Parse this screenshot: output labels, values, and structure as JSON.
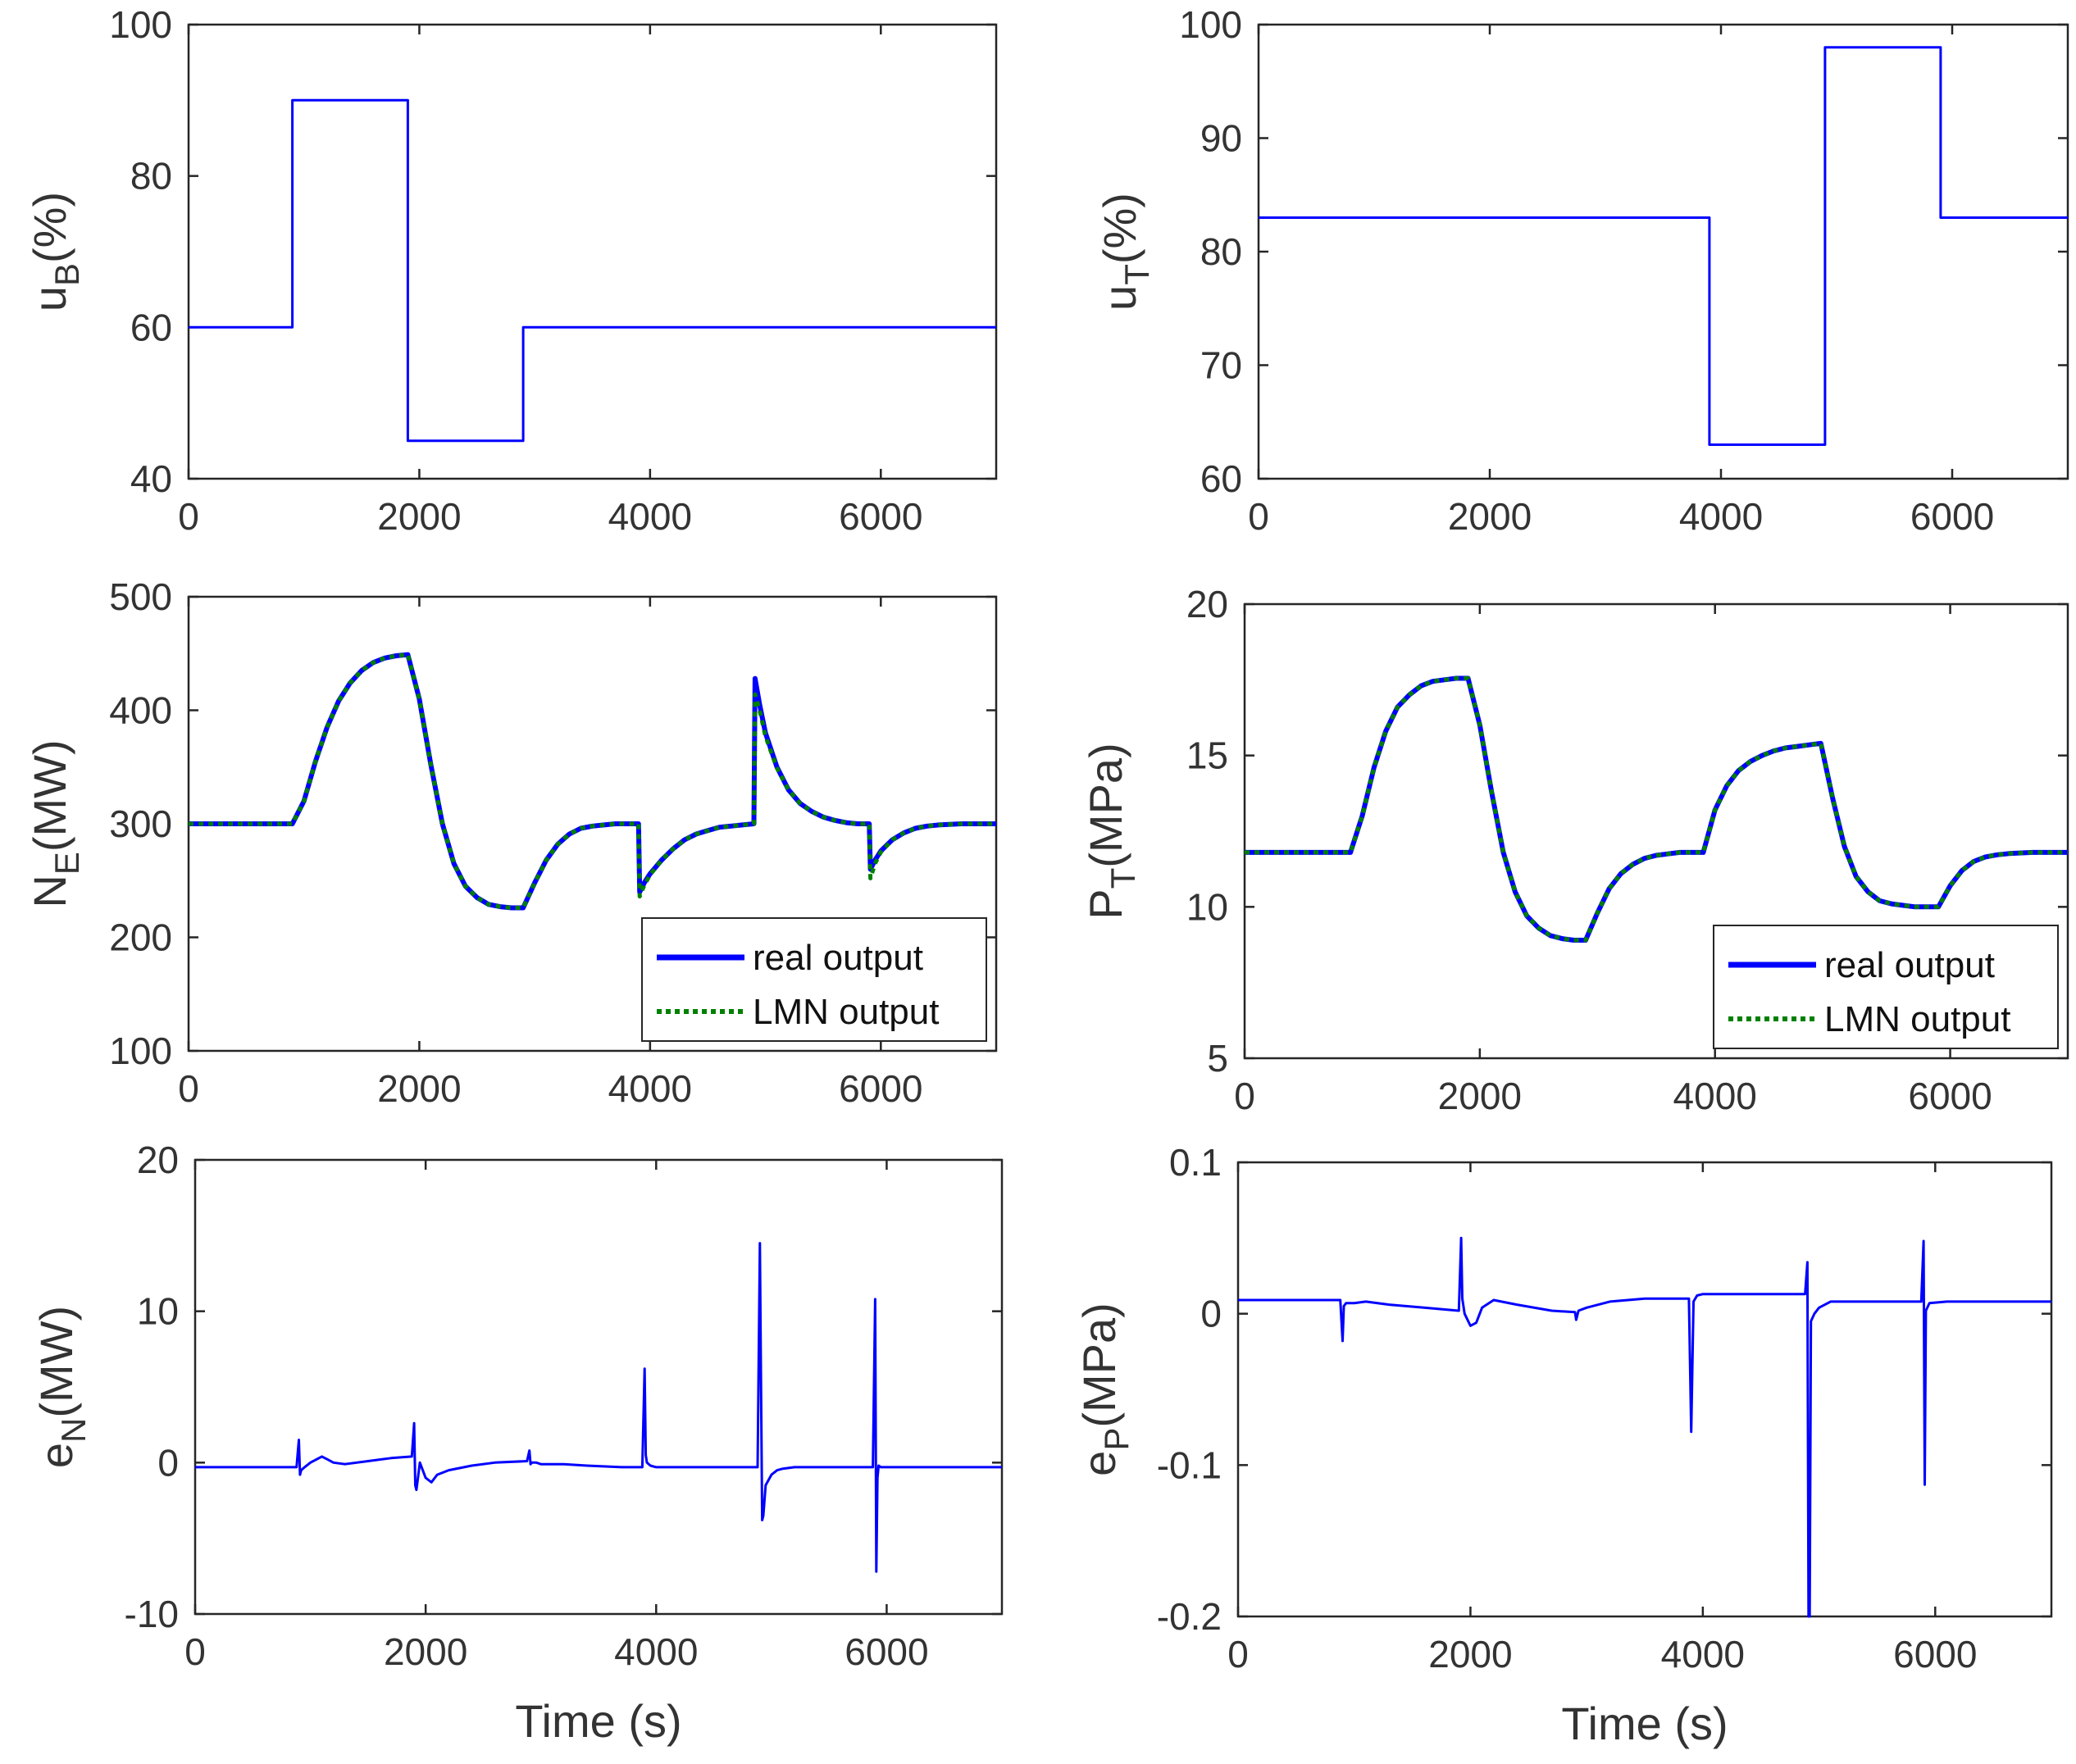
{
  "chart_data": [
    {
      "id": "uB",
      "type": "line",
      "ylabel_main": "u",
      "ylabel_sub": "B",
      "ylabel_tail": "(%)",
      "xlabel": "",
      "xlim": [
        0,
        7000
      ],
      "ylim": [
        40,
        100
      ],
      "xticks": [
        0,
        2000,
        4000,
        6000
      ],
      "yticks": [
        40,
        60,
        80,
        100
      ],
      "series": [
        {
          "name": "uB",
          "color": "#0000ff",
          "x": [
            0,
            900,
            900,
            1900,
            1900,
            2900,
            2900,
            7000
          ],
          "y": [
            60,
            60,
            90,
            90,
            45,
            45,
            60,
            60
          ]
        }
      ]
    },
    {
      "id": "uT",
      "type": "line",
      "ylabel_main": "u",
      "ylabel_sub": "T",
      "ylabel_tail": "(%)",
      "xlabel": "",
      "xlim": [
        0,
        7000
      ],
      "ylim": [
        60,
        100
      ],
      "xticks": [
        0,
        2000,
        4000,
        6000
      ],
      "yticks": [
        60,
        70,
        80,
        90,
        100
      ],
      "series": [
        {
          "name": "uT",
          "color": "#0000ff",
          "x": [
            0,
            3900,
            3900,
            4900,
            4900,
            5900,
            5900,
            7000
          ],
          "y": [
            83,
            83,
            63,
            63,
            98,
            98,
            83,
            83
          ]
        }
      ]
    },
    {
      "id": "NE",
      "type": "line",
      "ylabel_main": "N",
      "ylabel_sub": "E",
      "ylabel_tail": "(MW)",
      "xlabel": "",
      "xlim": [
        0,
        7000
      ],
      "ylim": [
        100,
        500
      ],
      "xticks": [
        0,
        2000,
        4000,
        6000
      ],
      "yticks": [
        100,
        200,
        300,
        400,
        500
      ],
      "legend": {
        "position": "bottom-right",
        "entries": [
          "real output",
          "LMN output"
        ]
      },
      "series": [
        {
          "name": "real output",
          "color": "#0000ff",
          "style": "solid",
          "x": [
            0,
            900,
            1000,
            1100,
            1200,
            1300,
            1400,
            1500,
            1600,
            1700,
            1800,
            1900,
            2000,
            2100,
            2200,
            2300,
            2400,
            2500,
            2600,
            2700,
            2800,
            2900,
            3000,
            3100,
            3200,
            3300,
            3400,
            3500,
            3600,
            3700,
            3800,
            3900,
            3910,
            3950,
            4000,
            4100,
            4200,
            4300,
            4400,
            4500,
            4600,
            4700,
            4800,
            4900,
            4910,
            4950,
            5000,
            5100,
            5200,
            5300,
            5400,
            5500,
            5600,
            5700,
            5800,
            5900,
            5910,
            5950,
            6000,
            6100,
            6200,
            6300,
            6400,
            6500,
            6700,
            7000
          ],
          "y": [
            300,
            300,
            320,
            355,
            385,
            408,
            424,
            435,
            442,
            446,
            448,
            449,
            410,
            352,
            300,
            265,
            245,
            235,
            229,
            227,
            226,
            226,
            248,
            268,
            282,
            291,
            296,
            298,
            299,
            300,
            300,
            300,
            240,
            248,
            256,
            268,
            278,
            286,
            291,
            294,
            297,
            298,
            299,
            300,
            428,
            405,
            380,
            350,
            330,
            318,
            311,
            306,
            303,
            301,
            300,
            300,
            260,
            268,
            276,
            286,
            292,
            296,
            298,
            299,
            300,
            300
          ]
        },
        {
          "name": "LMN output",
          "color": "#008000",
          "style": "dotted",
          "x": [
            0,
            900,
            1000,
            1100,
            1200,
            1300,
            1400,
            1500,
            1600,
            1700,
            1800,
            1900,
            2000,
            2100,
            2200,
            2300,
            2400,
            2500,
            2600,
            2700,
            2800,
            2900,
            3000,
            3100,
            3200,
            3300,
            3400,
            3500,
            3600,
            3700,
            3800,
            3900,
            3910,
            3950,
            4000,
            4100,
            4200,
            4300,
            4400,
            4500,
            4600,
            4700,
            4800,
            4900,
            4910,
            4950,
            5000,
            5100,
            5200,
            5300,
            5400,
            5500,
            5600,
            5700,
            5800,
            5900,
            5910,
            5950,
            6000,
            6100,
            6200,
            6300,
            6400,
            6500,
            6700,
            7000
          ],
          "y": [
            300,
            300,
            320,
            355,
            385,
            408,
            424,
            435,
            442,
            446,
            448,
            449,
            410,
            352,
            300,
            265,
            245,
            235,
            229,
            227,
            226,
            226,
            248,
            268,
            282,
            291,
            296,
            298,
            299,
            300,
            300,
            300,
            236,
            246,
            255,
            268,
            278,
            286,
            291,
            294,
            297,
            298,
            299,
            300,
            414,
            400,
            377,
            349,
            330,
            318,
            311,
            306,
            303,
            301,
            300,
            300,
            252,
            265,
            275,
            286,
            292,
            296,
            298,
            299,
            300,
            300
          ]
        }
      ]
    },
    {
      "id": "PT",
      "type": "line",
      "ylabel_main": "P",
      "ylabel_sub": "T",
      "ylabel_tail": "(MPa)",
      "xlabel": "",
      "xlim": [
        0,
        7000
      ],
      "ylim": [
        5,
        20
      ],
      "xticks": [
        0,
        2000,
        4000,
        6000
      ],
      "yticks": [
        5,
        10,
        15,
        20
      ],
      "legend": {
        "position": "bottom-right",
        "entries": [
          "real output",
          "LMN output"
        ]
      },
      "series": [
        {
          "name": "real output",
          "color": "#0000ff",
          "style": "solid",
          "x": [
            0,
            900,
            1000,
            1100,
            1200,
            1300,
            1400,
            1500,
            1600,
            1700,
            1800,
            1900,
            2000,
            2100,
            2200,
            2300,
            2400,
            2500,
            2600,
            2700,
            2800,
            2900,
            3000,
            3100,
            3200,
            3300,
            3400,
            3500,
            3600,
            3700,
            3800,
            3900,
            4000,
            4100,
            4200,
            4300,
            4400,
            4500,
            4600,
            4700,
            4800,
            4900,
            5000,
            5100,
            5200,
            5300,
            5400,
            5500,
            5600,
            5700,
            5800,
            5900,
            6000,
            6100,
            6200,
            6300,
            6400,
            6500,
            6700,
            7000
          ],
          "y": [
            11.8,
            11.8,
            13.0,
            14.6,
            15.8,
            16.6,
            17.0,
            17.3,
            17.45,
            17.5,
            17.55,
            17.55,
            16.0,
            13.8,
            11.8,
            10.5,
            9.7,
            9.3,
            9.05,
            8.95,
            8.9,
            8.9,
            9.8,
            10.6,
            11.1,
            11.4,
            11.6,
            11.7,
            11.75,
            11.8,
            11.8,
            11.8,
            13.2,
            14.0,
            14.5,
            14.8,
            15.0,
            15.15,
            15.25,
            15.3,
            15.35,
            15.4,
            13.6,
            12.0,
            11.0,
            10.5,
            10.2,
            10.1,
            10.05,
            10.0,
            10.0,
            10.0,
            10.7,
            11.2,
            11.5,
            11.65,
            11.72,
            11.76,
            11.8,
            11.8
          ]
        },
        {
          "name": "LMN output",
          "color": "#008000",
          "style": "dotted",
          "x": [
            0,
            900,
            1000,
            1100,
            1200,
            1300,
            1400,
            1500,
            1600,
            1700,
            1800,
            1900,
            2000,
            2100,
            2200,
            2300,
            2400,
            2500,
            2600,
            2700,
            2800,
            2900,
            3000,
            3100,
            3200,
            3300,
            3400,
            3500,
            3600,
            3700,
            3800,
            3900,
            4000,
            4100,
            4200,
            4300,
            4400,
            4500,
            4600,
            4700,
            4800,
            4900,
            5000,
            5100,
            5200,
            5300,
            5400,
            5500,
            5600,
            5700,
            5800,
            5900,
            6000,
            6100,
            6200,
            6300,
            6400,
            6500,
            6700,
            7000
          ],
          "y": [
            11.8,
            11.8,
            13.0,
            14.6,
            15.8,
            16.6,
            17.0,
            17.3,
            17.45,
            17.5,
            17.55,
            17.55,
            16.0,
            13.8,
            11.8,
            10.5,
            9.7,
            9.3,
            9.05,
            8.95,
            8.9,
            8.9,
            9.8,
            10.6,
            11.1,
            11.4,
            11.6,
            11.7,
            11.75,
            11.8,
            11.8,
            11.8,
            13.2,
            14.0,
            14.5,
            14.8,
            15.0,
            15.15,
            15.25,
            15.3,
            15.35,
            15.4,
            13.6,
            12.0,
            11.0,
            10.5,
            10.2,
            10.1,
            10.05,
            10.0,
            10.0,
            10.0,
            10.7,
            11.2,
            11.5,
            11.65,
            11.72,
            11.76,
            11.8,
            11.8
          ]
        }
      ]
    },
    {
      "id": "eN",
      "type": "line",
      "ylabel_main": "e",
      "ylabel_sub": "N",
      "ylabel_tail": "(MW)",
      "xlabel": "Time (s)",
      "xlim": [
        0,
        7000
      ],
      "ylim": [
        -10,
        20
      ],
      "xticks": [
        0,
        2000,
        4000,
        6000
      ],
      "yticks": [
        -10,
        0,
        10,
        20
      ],
      "series": [
        {
          "name": "eN",
          "color": "#0000ff",
          "x": [
            0,
            880,
            900,
            910,
            920,
            950,
            1000,
            1100,
            1150,
            1200,
            1300,
            1500,
            1700,
            1880,
            1900,
            1910,
            1920,
            1950,
            2000,
            2050,
            2100,
            2200,
            2400,
            2600,
            2880,
            2900,
            2910,
            2920,
            2960,
            3000,
            3200,
            3400,
            3700,
            3880,
            3900,
            3910,
            3920,
            3950,
            4000,
            4200,
            4600,
            4880,
            4900,
            4910,
            4920,
            4930,
            4950,
            5000,
            5050,
            5100,
            5200,
            5500,
            5880,
            5900,
            5910,
            5920,
            5930,
            5950,
            6000,
            6100,
            6500,
            7000
          ],
          "y": [
            -0.3,
            -0.3,
            1.5,
            -0.8,
            -0.5,
            -0.3,
            0.0,
            0.4,
            0.2,
            0.0,
            -0.1,
            0.1,
            0.3,
            0.4,
            2.6,
            -1.5,
            -1.8,
            0.0,
            -1.0,
            -1.3,
            -0.8,
            -0.5,
            -0.2,
            0.0,
            0.1,
            0.8,
            -0.1,
            0.0,
            0.0,
            -0.1,
            -0.1,
            -0.2,
            -0.3,
            -0.3,
            6.2,
            0.5,
            0.0,
            -0.2,
            -0.3,
            -0.3,
            -0.3,
            -0.3,
            14.5,
            5.0,
            -3.8,
            -3.5,
            -1.5,
            -0.8,
            -0.5,
            -0.4,
            -0.3,
            -0.3,
            -0.3,
            10.8,
            -7.2,
            -1.0,
            -0.2,
            -0.3,
            -0.3,
            -0.3,
            -0.3,
            -0.3
          ]
        }
      ]
    },
    {
      "id": "eP",
      "type": "line",
      "ylabel_main": "e",
      "ylabel_sub": "P",
      "ylabel_tail": "(MPa)",
      "xlabel": "Time (s)",
      "xlim": [
        0,
        7000
      ],
      "ylim": [
        -0.2,
        0.1
      ],
      "xticks": [
        0,
        2000,
        4000,
        6000
      ],
      "yticks": [
        -0.2,
        -0.1,
        0,
        0.1
      ],
      "ytick_labels": [
        "-0.2",
        "-0.1",
        "0",
        "0.1"
      ],
      "series": [
        {
          "name": "eP",
          "color": "#0000ff",
          "x": [
            0,
            880,
            900,
            910,
            930,
            1000,
            1100,
            1300,
            1600,
            1900,
            1920,
            1930,
            1950,
            2000,
            2050,
            2100,
            2200,
            2400,
            2700,
            2900,
            2910,
            2930,
            3000,
            3200,
            3500,
            3880,
            3900,
            3920,
            3950,
            4000,
            4300,
            4880,
            4900,
            4910,
            4920,
            4930,
            4960,
            5000,
            5100,
            5500,
            5880,
            5900,
            5910,
            5920,
            5950,
            6100,
            6500,
            7000
          ],
          "y": [
            0.009,
            0.009,
            -0.018,
            0.005,
            0.007,
            0.007,
            0.008,
            0.006,
            0.004,
            0.002,
            0.05,
            0.01,
            0.0,
            -0.008,
            -0.006,
            0.004,
            0.009,
            0.006,
            0.002,
            0.001,
            -0.004,
            0.002,
            0.004,
            0.008,
            0.01,
            0.01,
            -0.078,
            0.008,
            0.012,
            0.013,
            0.013,
            0.013,
            0.034,
            -0.2,
            -0.2,
            -0.005,
            0.0,
            0.004,
            0.008,
            0.008,
            0.008,
            0.048,
            -0.113,
            0.002,
            0.007,
            0.008,
            0.008,
            0.008
          ]
        }
      ]
    }
  ]
}
